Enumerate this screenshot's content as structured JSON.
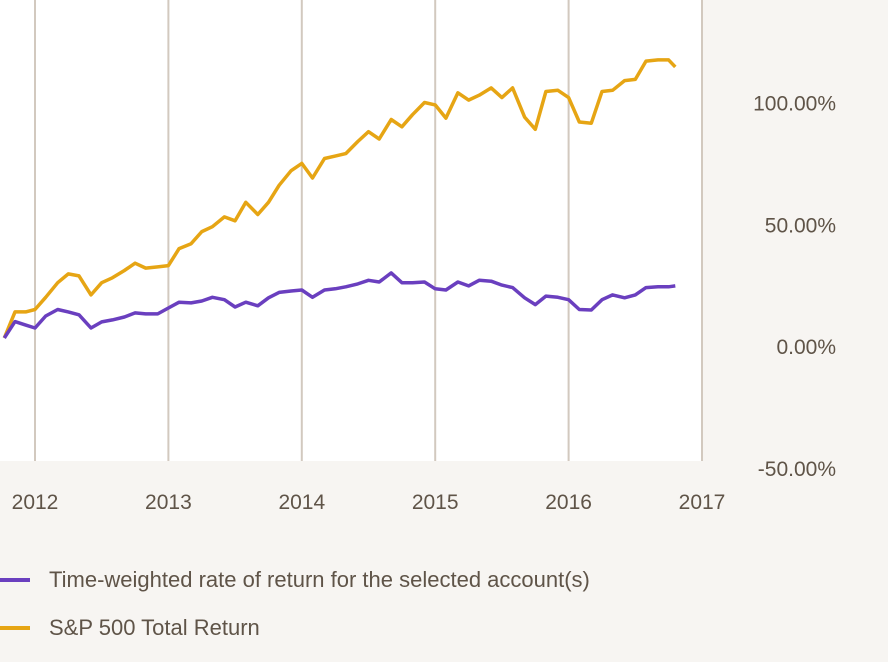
{
  "chart_data": {
    "type": "line",
    "title": "",
    "xlabel": "",
    "ylabel": "",
    "x_ticks": [
      "2012",
      "2013",
      "2014",
      "2015",
      "2016",
      "2017"
    ],
    "y_ticks": [
      "100.00%",
      "50.00%",
      "0.00%",
      "-50.00%"
    ],
    "y_tick_values": [
      100,
      50,
      0,
      -50
    ],
    "ylim": [
      -47,
      142
    ],
    "xlim": [
      2011.75,
      2017.0
    ],
    "grid": "vertical",
    "y_axis_side": "right",
    "legend_position": "bottom-left",
    "x": [
      2011.77,
      2011.85,
      2011.93,
      2012.0,
      2012.08,
      2012.17,
      2012.25,
      2012.33,
      2012.42,
      2012.5,
      2012.58,
      2012.67,
      2012.75,
      2012.83,
      2012.92,
      2013.0,
      2013.08,
      2013.17,
      2013.25,
      2013.33,
      2013.42,
      2013.5,
      2013.58,
      2013.67,
      2013.75,
      2013.83,
      2013.92,
      2014.0,
      2014.08,
      2014.17,
      2014.25,
      2014.33,
      2014.42,
      2014.5,
      2014.58,
      2014.67,
      2014.75,
      2014.83,
      2014.92,
      2015.0,
      2015.08,
      2015.17,
      2015.25,
      2015.33,
      2015.42,
      2015.5,
      2015.58,
      2015.67,
      2015.75,
      2015.83,
      2015.92,
      2016.0,
      2016.08,
      2016.17,
      2016.25,
      2016.33,
      2016.42,
      2016.5,
      2016.58,
      2016.67,
      2016.75,
      2016.8
    ],
    "series": [
      {
        "name": "Time-weighted rate of return for the selected account(s)",
        "color": "#6a3fbf",
        "values": [
          3.3,
          10,
          8.6,
          7.4,
          12.3,
          15,
          14,
          12.8,
          7.4,
          9.9,
          10.7,
          11.9,
          13.6,
          13.2,
          13.2,
          15.6,
          18,
          17.7,
          18.5,
          20,
          19,
          16,
          18,
          16.5,
          19.8,
          22,
          22.6,
          23,
          20,
          23,
          23.5,
          24.3,
          25.5,
          27,
          26.3,
          30,
          26,
          26,
          26.3,
          23.5,
          23,
          26.3,
          24.7,
          27,
          26.6,
          25,
          24,
          19.8,
          17,
          20.5,
          20,
          19,
          15,
          14.8,
          19,
          21,
          19.8,
          21,
          24,
          24.3,
          24.3,
          24.7
        ]
      },
      {
        "name": "S&P 500 Total Return",
        "color": "#e6a514",
        "values": [
          3.3,
          14,
          14,
          15,
          20,
          26,
          29.6,
          28.8,
          21,
          26,
          28,
          31,
          34,
          32,
          32.5,
          33,
          40,
          42,
          47,
          49,
          53,
          51.4,
          59,
          54,
          59,
          66,
          72,
          75,
          69,
          77,
          78,
          79,
          84,
          88,
          85,
          93,
          90,
          95,
          100,
          99,
          93.6,
          104,
          101,
          103,
          106,
          102,
          106,
          94,
          89,
          104.5,
          105,
          102,
          92,
          91.5,
          104.5,
          105,
          109,
          109.5,
          117,
          117.5,
          117.5,
          114.6
        ]
      }
    ]
  },
  "legend": {
    "items": [
      {
        "label": "Time-weighted rate of return for the selected account(s)",
        "color": "#6a3fbf"
      },
      {
        "label": "S&P 500 Total Return",
        "color": "#e6a514"
      }
    ]
  },
  "colors": {
    "background": "#f7f5f2",
    "plot_background": "#ffffff",
    "gridline": "#d2c9bf",
    "text": "#5f5448"
  }
}
